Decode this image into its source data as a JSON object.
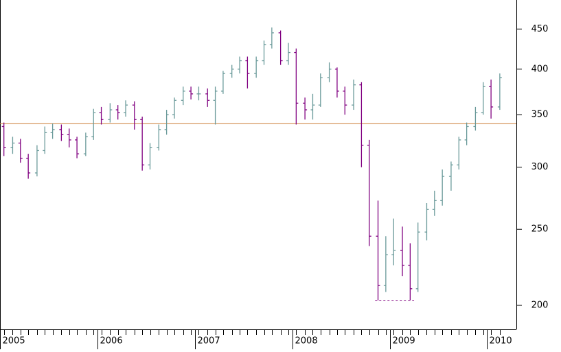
{
  "chart_data": {
    "type": "ohlc",
    "log_scale": true,
    "x": [
      2005.04,
      2005.13,
      2005.21,
      2005.29,
      2005.38,
      2005.46,
      2005.54,
      2005.63,
      2005.71,
      2005.79,
      2005.88,
      2005.96,
      2006.04,
      2006.13,
      2006.21,
      2006.29,
      2006.38,
      2006.46,
      2006.54,
      2006.63,
      2006.71,
      2006.79,
      2006.88,
      2006.96,
      2007.04,
      2007.13,
      2007.21,
      2007.29,
      2007.38,
      2007.46,
      2007.54,
      2007.63,
      2007.71,
      2007.79,
      2007.88,
      2007.96,
      2008.04,
      2008.13,
      2008.21,
      2008.29,
      2008.38,
      2008.46,
      2008.54,
      2008.63,
      2008.71,
      2008.79,
      2008.88,
      2008.96,
      2009.04,
      2009.13,
      2009.21,
      2009.29,
      2009.38,
      2009.46,
      2009.54,
      2009.63,
      2009.71,
      2009.79,
      2009.88,
      2009.96,
      2010.04,
      2010.13
    ],
    "open": [
      338,
      318,
      322,
      308,
      295,
      315,
      332,
      335,
      330,
      325,
      312,
      328,
      352,
      345,
      355,
      352,
      360,
      345,
      302,
      318,
      335,
      350,
      365,
      375,
      372,
      372,
      365,
      375,
      395,
      400,
      410,
      395,
      410,
      430,
      445,
      410,
      420,
      362,
      355,
      360,
      390,
      400,
      375,
      360,
      382,
      320,
      245,
      212,
      232,
      235,
      225,
      210,
      248,
      265,
      272,
      292,
      302,
      325,
      338,
      352,
      380,
      358
    ],
    "high": [
      342,
      328,
      326,
      312,
      320,
      338,
      341,
      340,
      336,
      328,
      332,
      356,
      358,
      362,
      360,
      365,
      364,
      348,
      322,
      340,
      355,
      368,
      380,
      380,
      380,
      378,
      380,
      398,
      405,
      415,
      415,
      415,
      435,
      452,
      448,
      432,
      425,
      368,
      372,
      395,
      408,
      402,
      380,
      388,
      385,
      325,
      272,
      245,
      258,
      252,
      240,
      255,
      270,
      280,
      298,
      305,
      328,
      342,
      358,
      385,
      388,
      395
    ],
    "low": [
      310,
      312,
      304,
      290,
      292,
      312,
      326,
      324,
      318,
      308,
      310,
      325,
      340,
      342,
      345,
      348,
      335,
      297,
      298,
      315,
      330,
      346,
      360,
      366,
      365,
      358,
      340,
      372,
      390,
      395,
      378,
      390,
      405,
      425,
      405,
      405,
      340,
      345,
      345,
      358,
      385,
      368,
      350,
      355,
      300,
      238,
      203,
      208,
      225,
      218,
      203,
      208,
      242,
      260,
      268,
      280,
      298,
      320,
      334,
      350,
      346,
      355
    ],
    "close": [
      318,
      322,
      308,
      295,
      315,
      332,
      335,
      330,
      325,
      312,
      328,
      352,
      345,
      355,
      352,
      360,
      345,
      302,
      318,
      335,
      350,
      365,
      375,
      372,
      372,
      365,
      375,
      395,
      400,
      410,
      395,
      410,
      430,
      445,
      410,
      420,
      362,
      355,
      360,
      390,
      400,
      375,
      360,
      382,
      320,
      245,
      212,
      232,
      235,
      225,
      210,
      248,
      265,
      272,
      292,
      302,
      325,
      338,
      352,
      380,
      358,
      390
    ],
    "up_color": "#6a9a9a",
    "down_color": "#800080",
    "xlim": [
      2005,
      2010.3
    ],
    "xticks": [
      2005,
      2006,
      2007,
      2008,
      2009,
      2010
    ],
    "ylim": [
      186.4,
      490
    ],
    "yticks": [
      200,
      250,
      300,
      350,
      400,
      450
    ],
    "reference_line": {
      "value": 341,
      "color": "#d08a4a"
    },
    "support_line": {
      "value": 203,
      "x": [
        2008.85,
        2009.25
      ],
      "color": "#800080"
    }
  }
}
